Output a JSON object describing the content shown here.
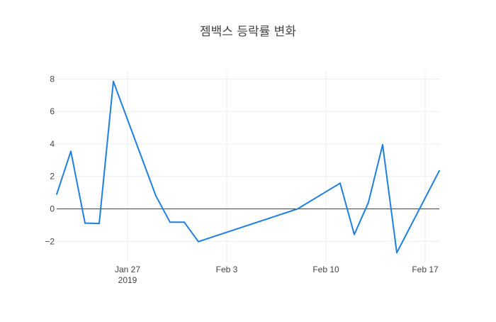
{
  "chart_data": {
    "type": "line",
    "title": "젬백스 등락률 변화",
    "xlabel": "",
    "ylabel": "",
    "x_axis": {
      "type": "date",
      "range": [
        "2019-01-22",
        "2019-02-18"
      ],
      "ticks": [
        {
          "date": "2019-01-27",
          "label": "Jan 27",
          "sublabel": "2019"
        },
        {
          "date": "2019-02-03",
          "label": "Feb 3",
          "sublabel": ""
        },
        {
          "date": "2019-02-10",
          "label": "Feb 10",
          "sublabel": ""
        },
        {
          "date": "2019-02-17",
          "label": "Feb 17",
          "sublabel": ""
        }
      ]
    },
    "y_axis": {
      "range": [
        -3.3,
        8.5
      ],
      "ticks": [
        {
          "value": -2,
          "label": "−2"
        },
        {
          "value": 0,
          "label": "0"
        },
        {
          "value": 2,
          "label": "2"
        },
        {
          "value": 4,
          "label": "4"
        },
        {
          "value": 6,
          "label": "6"
        },
        {
          "value": 8,
          "label": "8"
        }
      ],
      "zero_line": true
    },
    "grid": true,
    "colors": {
      "line": "#1f7fe0",
      "grid": "#eeeeee",
      "zero_line": "#444444",
      "text": "#444444"
    },
    "series": [
      {
        "x": [
          "2019-01-22",
          "2019-01-23",
          "2019-01-24",
          "2019-01-25",
          "2019-01-26",
          "2019-01-29",
          "2019-01-30",
          "2019-01-31",
          "2019-02-01",
          "2019-02-08",
          "2019-02-11",
          "2019-02-12",
          "2019-02-13",
          "2019-02-14",
          "2019-02-15",
          "2019-02-18"
        ],
        "y": [
          0.9,
          3.55,
          -0.88,
          -0.9,
          7.85,
          0.8,
          -0.82,
          -0.82,
          -2.02,
          0.0,
          1.58,
          -1.58,
          0.4,
          3.95,
          -2.7,
          2.35
        ]
      }
    ]
  }
}
